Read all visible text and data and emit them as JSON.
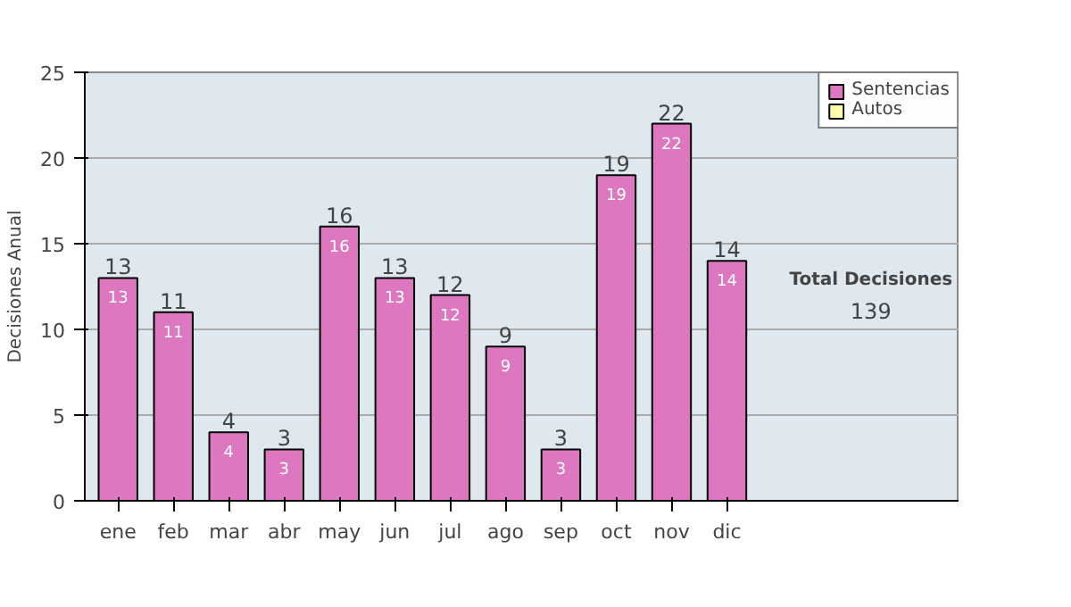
{
  "chart_data": {
    "type": "bar",
    "ylabel": "Decisiones Anual",
    "categories": [
      "ene",
      "feb",
      "mar",
      "abr",
      "may",
      "jun",
      "jul",
      "ago",
      "sep",
      "oct",
      "nov",
      "dic"
    ],
    "series": [
      {
        "name": "Sentencias",
        "color": "#dd77c0",
        "values": [
          13,
          11,
          4,
          3,
          16,
          13,
          12,
          9,
          3,
          19,
          22,
          14
        ]
      },
      {
        "name": "Autos",
        "color": "#ffffaa",
        "values": [
          null,
          null,
          null,
          null,
          null,
          null,
          null,
          null,
          null,
          null,
          null,
          null
        ]
      }
    ],
    "stacked": true,
    "totals": [
      "13",
      "11",
      "4",
      "3",
      "16",
      "13",
      "12",
      "9",
      "3",
      "19",
      "22",
      "14"
    ],
    "data_labels": true,
    "ylim": [
      0,
      25
    ],
    "yticks": [
      0,
      5,
      10,
      15,
      20,
      25
    ],
    "grid": "y",
    "legend": "right",
    "annotations": [
      "Total Decisiones",
      "139"
    ]
  }
}
